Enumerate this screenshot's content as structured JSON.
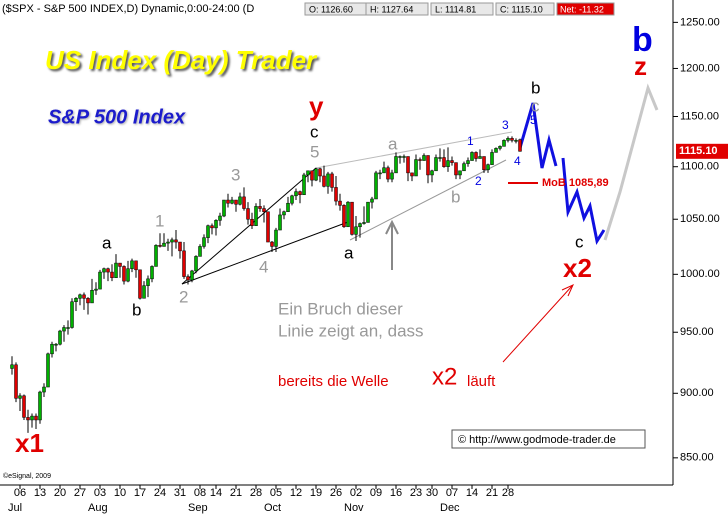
{
  "header": {
    "symbol": "($SPX - S&P 500 INDEX,D) Dynamic,0:00-24:00 (D",
    "open": "O: 1126.60",
    "high": "H: 1127.64",
    "low": "L: 1114.81",
    "close": "C: 1115.10",
    "net": "Net: -11.32",
    "last_price_label": "1115.10",
    "copyright": "©eSignal, 2009"
  },
  "chart_data": {
    "type": "candlestick",
    "title": "US Index (Day) Trader",
    "subtitle": "S&P 500 Index",
    "log_scale": true,
    "grid": false,
    "up_color": "#00b000",
    "down_color": "#e00000",
    "ylim": [
      832,
      1275
    ],
    "yticks": [
      {
        "value": 850,
        "label": "850.00"
      },
      {
        "value": 900,
        "label": "900.00"
      },
      {
        "value": 950,
        "label": "950.00"
      },
      {
        "value": 1000,
        "label": "1000.00"
      },
      {
        "value": 1050,
        "label": "1050.00"
      },
      {
        "value": 1100,
        "label": "1100.00"
      },
      {
        "value": 1150,
        "label": "1150.00"
      },
      {
        "value": 1200,
        "label": "1200.00"
      },
      {
        "value": 1250,
        "label": "1250.00"
      }
    ],
    "months": [
      "Jul",
      "Aug",
      "Sep",
      "Oct",
      "Nov",
      "Dec"
    ],
    "categories": [
      null,
      null,
      "06",
      null,
      null,
      null,
      null,
      "13",
      null,
      null,
      null,
      null,
      "20",
      null,
      null,
      null,
      null,
      "27",
      null,
      null,
      null,
      null,
      "03",
      null,
      null,
      null,
      null,
      "10",
      null,
      null,
      null,
      null,
      "17",
      null,
      null,
      null,
      null,
      "24",
      null,
      null,
      null,
      null,
      "31",
      null,
      null,
      null,
      null,
      "08",
      null,
      null,
      null,
      "14",
      null,
      null,
      null,
      null,
      "21",
      null,
      null,
      null,
      null,
      "28",
      null,
      null,
      null,
      null,
      "05",
      null,
      null,
      null,
      null,
      "12",
      null,
      null,
      null,
      null,
      "19",
      null,
      null,
      null,
      null,
      "26",
      null,
      null,
      null,
      null,
      "02",
      null,
      null,
      null,
      null,
      "09",
      null,
      null,
      null,
      null,
      "16",
      null,
      null,
      null,
      null,
      "23",
      null,
      null,
      null,
      "30",
      null,
      null,
      null,
      null,
      "07",
      null,
      null,
      null,
      null,
      "14",
      null,
      null,
      null,
      null,
      "21",
      null,
      null,
      null,
      "28",
      null,
      null,
      null
    ],
    "ohlc": [
      [
        920,
        930,
        915,
        923
      ],
      [
        923,
        925,
        893,
        896
      ],
      [
        896,
        900,
        886,
        898
      ],
      [
        898,
        899,
        879,
        881
      ],
      [
        881,
        887,
        869,
        879
      ],
      [
        879,
        884,
        873,
        882
      ],
      [
        882,
        884,
        872,
        879
      ],
      [
        879,
        902,
        876,
        901
      ],
      [
        901,
        908,
        897,
        905
      ],
      [
        905,
        933,
        905,
        932
      ],
      [
        932,
        942,
        929,
        940
      ],
      [
        940,
        941,
        934,
        940
      ],
      [
        940,
        952,
        939,
        951
      ],
      [
        951,
        956,
        942,
        954
      ],
      [
        954,
        960,
        948,
        954
      ],
      [
        954,
        979,
        953,
        976
      ],
      [
        976,
        980,
        968,
        979
      ],
      [
        979,
        983,
        973,
        982
      ],
      [
        982,
        984,
        969,
        979
      ],
      [
        979,
        980,
        965,
        975
      ],
      [
        975,
        996,
        975,
        986
      ],
      [
        986,
        993,
        982,
        987
      ],
      [
        987,
        1004,
        987,
        1002
      ],
      [
        1002,
        1006,
        996,
        1005
      ],
      [
        1005,
        1006,
        994,
        1002
      ],
      [
        1002,
        1009,
        994,
        997
      ],
      [
        997,
        1018,
        997,
        1010
      ],
      [
        1010,
        1010,
        997,
        1007
      ],
      [
        1007,
        1008,
        991,
        994
      ],
      [
        994,
        1012,
        993,
        1005
      ],
      [
        1005,
        1014,
        1002,
        1012
      ],
      [
        1012,
        1012,
        997,
        1004
      ],
      [
        1004,
        1004,
        978,
        979
      ],
      [
        979,
        994,
        979,
        990
      ],
      [
        990,
        999,
        980,
        996
      ],
      [
        996,
        1008,
        993,
        1007
      ],
      [
        1007,
        1027,
        1007,
        1026
      ],
      [
        1026,
        1037,
        1024,
        1025
      ],
      [
        1025,
        1037,
        1025,
        1028
      ],
      [
        1028,
        1032,
        1021,
        1029
      ],
      [
        1029,
        1033,
        1016,
        1031
      ],
      [
        1031,
        1040,
        1023,
        1029
      ],
      [
        1029,
        1029,
        1014,
        1021
      ],
      [
        1021,
        1029,
        996,
        998
      ],
      [
        998,
        1000,
        991,
        995
      ],
      [
        995,
        1004,
        993,
        1003
      ],
      [
        1003,
        1017,
        1001,
        1016
      ],
      [
        1016,
        1027,
        1016,
        1025
      ],
      [
        1025,
        1036,
        1023,
        1033
      ],
      [
        1033,
        1045,
        1028,
        1044
      ],
      [
        1044,
        1046,
        1036,
        1042
      ],
      [
        1042,
        1050,
        1035,
        1049
      ],
      [
        1049,
        1056,
        1044,
        1053
      ],
      [
        1053,
        1068,
        1052,
        1068
      ],
      [
        1068,
        1074,
        1061,
        1065
      ],
      [
        1065,
        1071,
        1064,
        1068
      ],
      [
        1068,
        1068,
        1057,
        1064
      ],
      [
        1064,
        1075,
        1063,
        1071
      ],
      [
        1071,
        1080,
        1058,
        1060
      ],
      [
        1060,
        1066,
        1045,
        1050
      ],
      [
        1050,
        1056,
        1041,
        1044
      ],
      [
        1044,
        1065,
        1044,
        1062
      ],
      [
        1062,
        1069,
        1057,
        1060
      ],
      [
        1060,
        1063,
        1047,
        1057
      ],
      [
        1057,
        1057,
        1029,
        1029
      ],
      [
        1029,
        1030,
        1020,
        1025
      ],
      [
        1025,
        1042,
        1020,
        1040
      ],
      [
        1040,
        1060,
        1040,
        1054
      ],
      [
        1054,
        1058,
        1050,
        1057
      ],
      [
        1057,
        1071,
        1057,
        1065
      ],
      [
        1065,
        1073,
        1063,
        1072
      ],
      [
        1072,
        1079,
        1068,
        1076
      ],
      [
        1076,
        1077,
        1065,
        1073
      ],
      [
        1073,
        1094,
        1073,
        1092
      ],
      [
        1092,
        1096,
        1085,
        1096
      ],
      [
        1096,
        1096,
        1081,
        1087
      ],
      [
        1087,
        1099,
        1086,
        1098
      ],
      [
        1098,
        1099,
        1085,
        1091
      ],
      [
        1091,
        1101,
        1080,
        1081
      ],
      [
        1081,
        1095,
        1074,
        1093
      ],
      [
        1093,
        1095,
        1076,
        1080
      ],
      [
        1080,
        1091,
        1063,
        1067
      ],
      [
        1067,
        1074,
        1058,
        1063
      ],
      [
        1063,
        1064,
        1042,
        1043
      ],
      [
        1043,
        1067,
        1043,
        1066
      ],
      [
        1066,
        1066,
        1035,
        1036
      ],
      [
        1036,
        1053,
        1030,
        1043
      ],
      [
        1043,
        1047,
        1033,
        1046
      ],
      [
        1046,
        1062,
        1045,
        1047
      ],
      [
        1047,
        1066,
        1047,
        1066
      ],
      [
        1066,
        1071,
        1060,
        1069
      ],
      [
        1069,
        1096,
        1069,
        1094
      ],
      [
        1094,
        1097,
        1088,
        1094
      ],
      [
        1094,
        1105,
        1094,
        1099
      ],
      [
        1099,
        1101,
        1085,
        1088
      ],
      [
        1088,
        1097,
        1085,
        1094
      ],
      [
        1094,
        1114,
        1094,
        1110
      ],
      [
        1110,
        1111,
        1103,
        1110
      ],
      [
        1110,
        1112,
        1104,
        1110
      ],
      [
        1110,
        1110,
        1086,
        1094
      ],
      [
        1094,
        1094,
        1086,
        1091
      ],
      [
        1091,
        1112,
        1091,
        1107
      ],
      [
        1107,
        1109,
        1097,
        1106
      ],
      [
        1106,
        1113,
        1106,
        1111
      ],
      [
        1111,
        1111,
        1084,
        1092
      ],
      [
        1092,
        1097,
        1085,
        1096
      ],
      [
        1096,
        1112,
        1096,
        1109
      ],
      [
        1109,
        1118,
        1105,
        1109
      ],
      [
        1109,
        1117,
        1099,
        1100
      ],
      [
        1100,
        1119,
        1095,
        1106
      ],
      [
        1106,
        1110,
        1101,
        1104
      ],
      [
        1104,
        1104,
        1088,
        1092
      ],
      [
        1092,
        1096,
        1088,
        1096
      ],
      [
        1096,
        1105,
        1096,
        1103
      ],
      [
        1103,
        1109,
        1100,
        1106
      ],
      [
        1106,
        1115,
        1106,
        1114
      ],
      [
        1114,
        1115,
        1105,
        1108
      ],
      [
        1108,
        1117,
        1108,
        1110
      ],
      [
        1110,
        1110,
        1094,
        1097
      ],
      [
        1097,
        1103,
        1094,
        1102
      ],
      [
        1102,
        1117,
        1102,
        1114
      ],
      [
        1114,
        1119,
        1114,
        1118
      ],
      [
        1118,
        1121,
        1116,
        1120
      ],
      [
        1120,
        1127,
        1120,
        1126
      ],
      [
        1126,
        1130,
        1124,
        1128
      ],
      [
        1128,
        1130,
        1124,
        1126
      ],
      [
        1126,
        1128,
        1123,
        1126
      ],
      [
        1126.6,
        1127.64,
        1114.81,
        1115.1
      ]
    ]
  },
  "annotations": [
    "x1",
    "a",
    "b",
    "1",
    "2",
    "3",
    "4",
    "5",
    "c",
    "y",
    "a",
    "a",
    "b",
    "1",
    "2",
    "3",
    "4",
    "5",
    "b",
    "c",
    "MoB 1085,89",
    "c",
    "x2",
    "b",
    "z",
    "Ein Bruch dieser",
    "Linie zeigt an, dass",
    "bereits die Welle",
    "x2",
    "läuft",
    "© http://www.godmode-trader.de"
  ]
}
